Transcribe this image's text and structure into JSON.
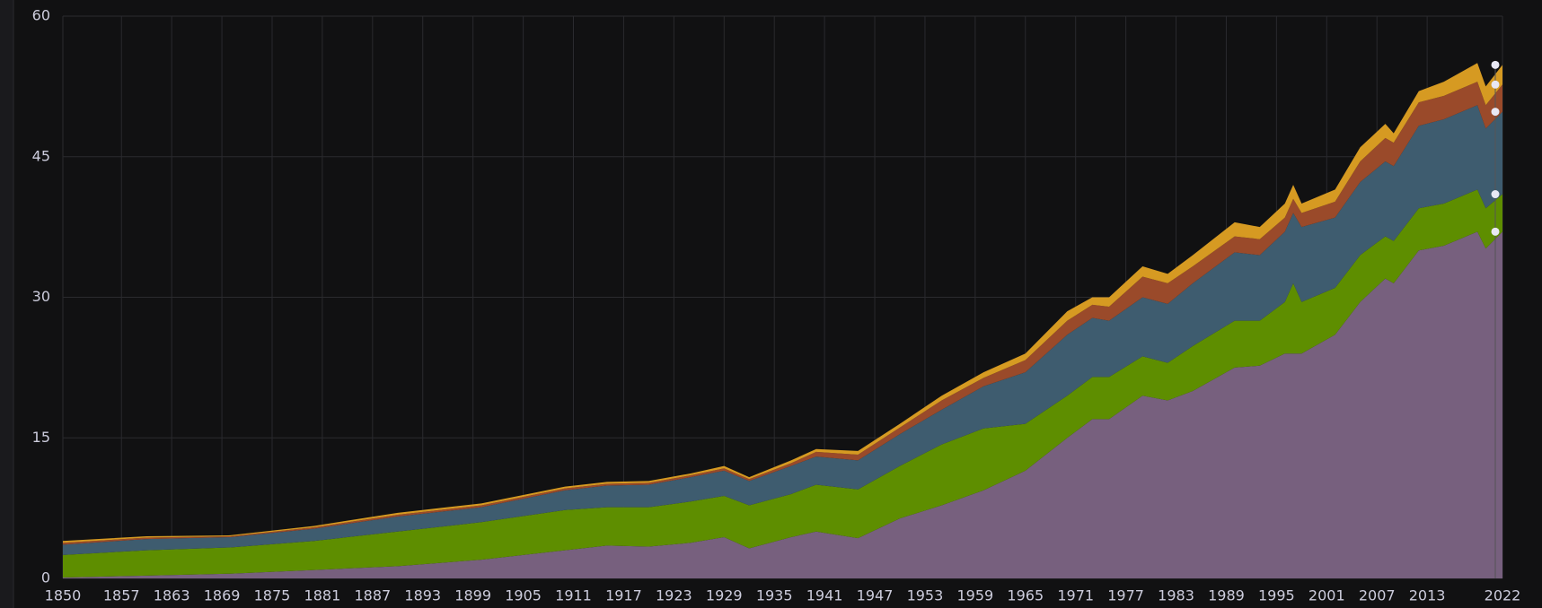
{
  "chart_data": {
    "type": "area",
    "stacked": true,
    "x": [
      1850,
      1860,
      1870,
      1880,
      1890,
      1900,
      1910,
      1915,
      1920,
      1925,
      1929,
      1932,
      1937,
      1940,
      1945,
      1950,
      1955,
      1960,
      1965,
      1970,
      1973,
      1975,
      1979,
      1982,
      1985,
      1990,
      1993,
      1996,
      1997,
      1998,
      2002,
      2005,
      2008,
      2009,
      2012,
      2015,
      2019,
      2020,
      2022
    ],
    "series": [
      {
        "color": "#77607e",
        "values": [
          0.1,
          0.3,
          0.5,
          0.9,
          1.3,
          2.0,
          3.0,
          3.5,
          3.4,
          3.8,
          4.4,
          3.2,
          4.4,
          5.0,
          4.3,
          6.4,
          7.8,
          9.4,
          11.5,
          15.0,
          17.0,
          17.0,
          19.5,
          19.0,
          20.0,
          22.5,
          22.7,
          24.0,
          24.0,
          24.0,
          26.0,
          29.5,
          32.0,
          31.5,
          35.0,
          35.5,
          37.0,
          35.2,
          37.0
        ]
      },
      {
        "color": "#5e8e00",
        "values": [
          2.4,
          2.7,
          2.8,
          3.1,
          3.7,
          4.0,
          4.3,
          4.1,
          4.2,
          4.4,
          4.4,
          4.6,
          4.6,
          5.0,
          5.2,
          5.6,
          6.5,
          6.6,
          5.0,
          4.5,
          4.5,
          4.5,
          4.2,
          4.0,
          4.8,
          5.0,
          4.8,
          5.5,
          7.5,
          5.5,
          5.0,
          5.0,
          4.5,
          4.5,
          4.5,
          4.5,
          4.5,
          4.3,
          4.0
        ]
      },
      {
        "color": "#3e5c6f",
        "values": [
          1.1,
          1.2,
          1.1,
          1.3,
          1.6,
          1.6,
          2.1,
          2.3,
          2.4,
          2.6,
          2.7,
          2.6,
          3.0,
          3.0,
          3.1,
          3.4,
          3.7,
          4.5,
          5.5,
          6.5,
          6.3,
          6.0,
          6.3,
          6.3,
          6.7,
          7.3,
          7.0,
          7.5,
          7.5,
          8.0,
          7.5,
          7.8,
          8.0,
          8.0,
          8.8,
          9.0,
          9.0,
          8.5,
          8.8
        ]
      },
      {
        "color": "#9a4a2a",
        "values": [
          0.2,
          0.15,
          0.1,
          0.15,
          0.2,
          0.2,
          0.2,
          0.2,
          0.2,
          0.2,
          0.25,
          0.2,
          0.3,
          0.5,
          0.6,
          0.7,
          1.0,
          0.9,
          1.3,
          1.5,
          1.4,
          1.5,
          2.2,
          2.2,
          1.8,
          1.7,
          1.7,
          1.5,
          1.5,
          1.5,
          1.7,
          2.2,
          2.5,
          2.5,
          2.5,
          2.5,
          2.5,
          2.5,
          2.9
        ]
      },
      {
        "color": "#d69a22",
        "values": [
          0.2,
          0.15,
          0.1,
          0.15,
          0.2,
          0.2,
          0.2,
          0.2,
          0.2,
          0.2,
          0.25,
          0.2,
          0.3,
          0.3,
          0.4,
          0.4,
          0.5,
          0.6,
          0.7,
          1.0,
          0.8,
          1.0,
          1.1,
          1.0,
          1.2,
          1.5,
          1.3,
          1.5,
          1.5,
          1.0,
          1.3,
          1.5,
          1.5,
          1.0,
          1.2,
          1.5,
          2.0,
          2.0,
          2.1
        ]
      }
    ],
    "xlim": [
      1850,
      2022
    ],
    "xticks": [
      1850,
      1857,
      1863,
      1869,
      1875,
      1881,
      1887,
      1893,
      1899,
      1905,
      1911,
      1917,
      1923,
      1929,
      1935,
      1941,
      1947,
      1953,
      1959,
      1965,
      1971,
      1977,
      1983,
      1989,
      1995,
      2001,
      2007,
      2013,
      2022
    ],
    "ylim": [
      0,
      60
    ],
    "yticks": [
      0,
      15,
      30,
      45,
      60
    ],
    "grid": true
  }
}
